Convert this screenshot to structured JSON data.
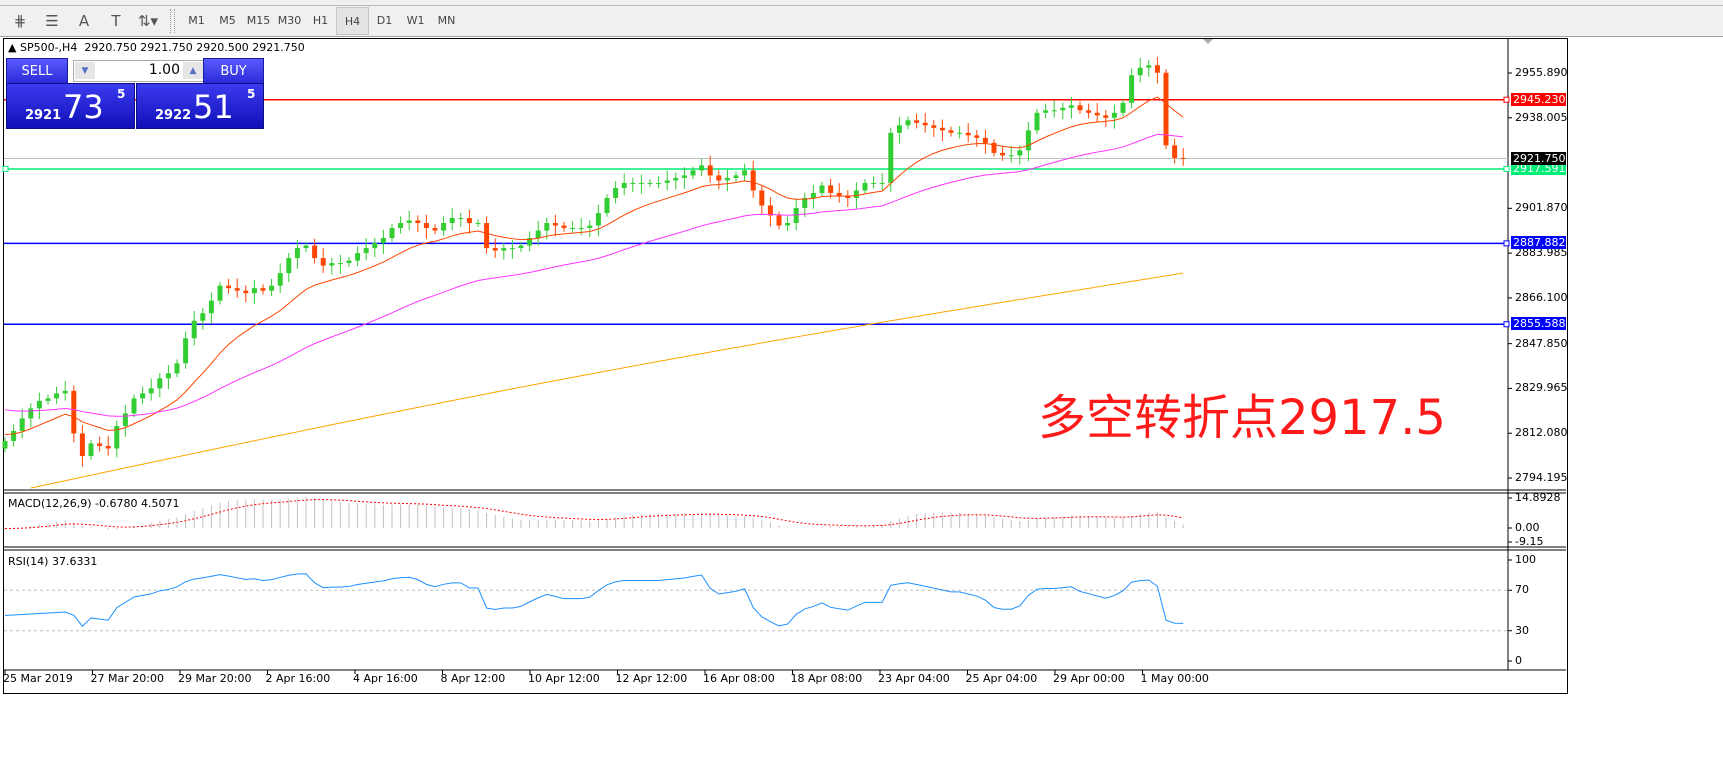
{
  "toolbar": {
    "tools": [
      {
        "name": "elliott-wave-icon",
        "glyph": "⋕"
      },
      {
        "name": "fibonacci-icon",
        "glyph": "☰"
      },
      {
        "name": "text-icon",
        "glyph": "A"
      },
      {
        "name": "text-label-icon",
        "glyph": "T"
      },
      {
        "name": "arrows-icon",
        "glyph": "⇅▾"
      }
    ],
    "timeframes": [
      "M1",
      "M5",
      "M15",
      "M30",
      "H1",
      "H4",
      "D1",
      "W1",
      "MN"
    ],
    "active_timeframe": "H4"
  },
  "header": {
    "symbol": "SP500-,H4",
    "ohlc": "2920.750 2921.750 2920.500 2921.750"
  },
  "one_click": {
    "sell_label": "SELL",
    "buy_label": "BUY",
    "lot": "1.00",
    "sell_price_prefix": "2921",
    "sell_price_big": "73",
    "sell_price_sup": "5",
    "buy_price_prefix": "2922",
    "buy_price_big": "51",
    "buy_price_sup": "5"
  },
  "annotation": {
    "text": "多空转折点2917.5",
    "color": "#ff1a1a"
  },
  "price_axis": {
    "ticks": [
      "2955.890",
      "2938.005",
      "2901.870",
      "2883.985",
      "2866.100",
      "2847.850",
      "2829.965",
      "2812.080",
      "2794.195"
    ],
    "levels": [
      {
        "value": "2945.230",
        "color": "#ff0000"
      },
      {
        "value": "2917.591",
        "color": "#00ee77"
      },
      {
        "value": "2887.882",
        "color": "#0000ff"
      },
      {
        "value": "2855.588",
        "color": "#0000ff"
      }
    ],
    "current_price": "2921.750"
  },
  "macd": {
    "label": "MACD(12,26,9) -0.6780 4.5071",
    "ticks": [
      "14.8928",
      "0.00",
      "-9.15"
    ]
  },
  "rsi": {
    "label": "RSI(14) 37.6331",
    "ticks": [
      "100",
      "70",
      "30",
      "0"
    ]
  },
  "time_axis": [
    "25 Mar 2019",
    "27 Mar 20:00",
    "29 Mar 20:00",
    "2 Apr 16:00",
    "4 Apr 16:00",
    "8 Apr 12:00",
    "10 Apr 12:00",
    "12 Apr 12:00",
    "16 Apr 08:00",
    "18 Apr 08:00",
    "23 Apr 04:00",
    "25 Apr 04:00",
    "29 Apr 00:00",
    "1 May 00:00"
  ],
  "chart_data": {
    "type": "candlestick",
    "closes": [
      2809,
      2813,
      2818,
      2822,
      2825,
      2826,
      2828,
      2829,
      2812,
      2803,
      2808,
      2807,
      2806,
      2815,
      2820,
      2826,
      2828,
      2830,
      2834,
      2836,
      2840,
      2850,
      2857,
      2860,
      2865,
      2871,
      2870,
      2869,
      2868,
      2870,
      2869,
      2871,
      2876,
      2882,
      2886,
      2887,
      2882,
      2879,
      2880,
      2880,
      2881,
      2884,
      2886,
      2888,
      2890,
      2894,
      2896,
      2897,
      2896,
      2894,
      2893,
      2896,
      2898,
      2898,
      2896,
      2896,
      2886,
      2885,
      2886,
      2886,
      2887,
      2890,
      2893,
      2896,
      2895,
      2894,
      2894,
      2894,
      2895,
      2900,
      2906,
      2910,
      2912,
      2912,
      2912,
      2912,
      2912,
      2913,
      2914,
      2915,
      2917,
      2919,
      2915,
      2913,
      2914,
      2915,
      2917,
      2909,
      2903,
      2899,
      2895,
      2896,
      2902,
      2906,
      2908,
      2911,
      2908,
      2907,
      2906,
      2909,
      2912,
      2912,
      2912,
      2932,
      2935,
      2937,
      2936,
      2935,
      2934,
      2933,
      2932,
      2932,
      2931,
      2930,
      2928,
      2924,
      2923,
      2923,
      2925,
      2933,
      2940,
      2941,
      2941,
      2942,
      2943,
      2941,
      2940,
      2939,
      2938,
      2940,
      2944,
      2955,
      2958,
      2959,
      2956,
      2927,
      2922,
      2921.75
    ],
    "up_color": "#32cd32",
    "down_color": "#ff4500",
    "ma_colors": [
      "#ff4500",
      "#ff33ff",
      "#ffa500"
    ],
    "ylim": [
      2790,
      2970
    ]
  }
}
